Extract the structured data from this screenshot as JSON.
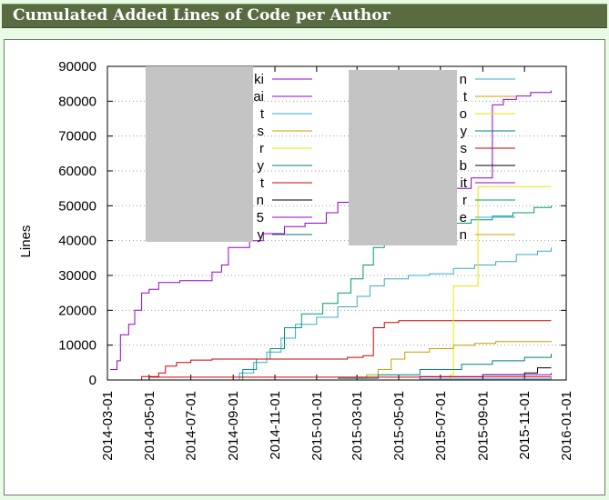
{
  "page": {
    "title": "Cumulated Added Lines of Code per Author"
  },
  "chart_data": {
    "type": "line",
    "title": "",
    "xlabel": "",
    "ylabel": "Lines",
    "ylim": [
      0,
      90000
    ],
    "yticks": [
      "0",
      "10000",
      "20000",
      "30000",
      "40000",
      "50000",
      "60000",
      "70000",
      "80000",
      "90000"
    ],
    "xlim": [
      "2014-03-01",
      "2016-01-01"
    ],
    "xticks": [
      "2014-03-01",
      "2014-05-01",
      "2014-07-01",
      "2014-09-01",
      "2014-11-01",
      "2015-01-01",
      "2015-03-01",
      "2015-05-01",
      "2015-07-01",
      "2015-09-01",
      "2015-11-01",
      "2016-01-01"
    ],
    "grid": "horizontal dotted",
    "legend_placement": "top, two columns (names obscured)",
    "legend_labels_col1": [
      "ki",
      "ai",
      "t",
      "s",
      "r",
      "y",
      "t",
      "n",
      "5",
      "y"
    ],
    "legend_labels_col2": [
      "n",
      "t",
      "o",
      "y",
      "s",
      "b",
      "it",
      "r",
      "e",
      "n"
    ],
    "legend_colors_col1": [
      "#9400d3",
      "#9400d3",
      "#3aa8d1",
      "#c8a000",
      "#e6e600",
      "#007f7f",
      "#cc0000",
      "#000000",
      "#9400d3",
      "#007f7f"
    ],
    "legend_colors_col2": [
      "#3aa8d1",
      "#c8a000",
      "#e6e600",
      "#007f7f",
      "#cc0000",
      "#000000",
      "#9400d3",
      "#009977",
      "#3aa8d1",
      "#c8a000"
    ],
    "series": [
      {
        "color": "#9400d3",
        "points": [
          [
            "2014-03-05",
            3000
          ],
          [
            "2014-03-15",
            5500
          ],
          [
            "2014-03-20",
            13000
          ],
          [
            "2014-04-01",
            16000
          ],
          [
            "2014-04-10",
            20000
          ],
          [
            "2014-04-20",
            25000
          ],
          [
            "2014-05-01",
            26000
          ],
          [
            "2014-05-15",
            28000
          ],
          [
            "2014-06-15",
            28500
          ],
          [
            "2014-07-20",
            28500
          ],
          [
            "2014-08-01",
            31000
          ],
          [
            "2014-08-15",
            33000
          ],
          [
            "2014-08-25",
            38000
          ],
          [
            "2014-09-25",
            40000
          ],
          [
            "2014-10-15",
            42000
          ],
          [
            "2014-11-15",
            44000
          ],
          [
            "2014-12-15",
            45000
          ],
          [
            "2015-01-15",
            48000
          ],
          [
            "2015-02-01",
            51000
          ],
          [
            "2015-02-20",
            51000
          ]
        ]
      },
      {
        "color": "#9400d3",
        "points": [
          [
            "2015-07-25",
            55000
          ],
          [
            "2015-08-15",
            58000
          ],
          [
            "2015-09-15",
            79000
          ],
          [
            "2015-10-01",
            80500
          ],
          [
            "2015-10-20",
            81500
          ],
          [
            "2015-11-10",
            82500
          ],
          [
            "2015-12-10",
            83000
          ]
        ]
      },
      {
        "color": "#3aa8d1",
        "points": [
          [
            "2014-08-20",
            0
          ],
          [
            "2014-09-10",
            2000
          ],
          [
            "2014-10-01",
            5000
          ],
          [
            "2014-10-20",
            8000
          ],
          [
            "2014-11-10",
            12000
          ],
          [
            "2014-12-01",
            16000
          ],
          [
            "2015-01-01",
            18000
          ],
          [
            "2015-02-01",
            21000
          ],
          [
            "2015-03-01",
            24000
          ],
          [
            "2015-03-20",
            27000
          ],
          [
            "2015-04-10",
            29000
          ],
          [
            "2015-05-15",
            30000
          ],
          [
            "2015-06-15",
            30500
          ],
          [
            "2015-07-20",
            32000
          ],
          [
            "2015-08-20",
            33000
          ],
          [
            "2015-09-20",
            34000
          ],
          [
            "2015-10-20",
            36000
          ],
          [
            "2015-11-20",
            37000
          ],
          [
            "2015-12-10",
            38000
          ]
        ]
      },
      {
        "color": "#009977",
        "points": [
          [
            "2014-08-25",
            0
          ],
          [
            "2014-09-15",
            3000
          ],
          [
            "2014-10-05",
            6000
          ],
          [
            "2014-10-25",
            9000
          ],
          [
            "2014-11-15",
            15000
          ],
          [
            "2014-12-10",
            19000
          ],
          [
            "2015-01-10",
            22000
          ],
          [
            "2015-02-01",
            25000
          ],
          [
            "2015-02-20",
            29000
          ],
          [
            "2015-03-10",
            33000
          ],
          [
            "2015-03-25",
            38000
          ],
          [
            "2015-04-10",
            39000
          ],
          [
            "2015-05-15",
            43000
          ],
          [
            "2015-06-15",
            44000
          ],
          [
            "2015-07-15",
            45000
          ],
          [
            "2015-08-15",
            46000
          ],
          [
            "2015-09-15",
            47000
          ],
          [
            "2015-10-15",
            48000
          ],
          [
            "2015-11-15",
            49500
          ],
          [
            "2015-12-10",
            50000
          ]
        ]
      },
      {
        "color": "#cc0000",
        "points": [
          [
            "2014-03-01",
            0
          ],
          [
            "2014-04-20",
            1000
          ],
          [
            "2014-05-15",
            2000
          ],
          [
            "2014-05-25",
            4000
          ],
          [
            "2014-06-10",
            5000
          ],
          [
            "2014-07-01",
            5700
          ],
          [
            "2014-08-01",
            6000
          ],
          [
            "2015-01-01",
            6000
          ],
          [
            "2015-02-15",
            6500
          ],
          [
            "2015-03-10",
            7000
          ],
          [
            "2015-03-25",
            15000
          ],
          [
            "2015-04-10",
            16500
          ],
          [
            "2015-05-01",
            17000
          ],
          [
            "2015-12-10",
            17000
          ]
        ]
      },
      {
        "color": "#e6e600",
        "points": [
          [
            "2014-03-01",
            0
          ],
          [
            "2015-06-01",
            0
          ],
          [
            "2015-07-01",
            200
          ],
          [
            "2015-07-15",
            1500
          ],
          [
            "2015-07-20",
            27000
          ],
          [
            "2015-08-20",
            27000
          ],
          [
            "2015-08-25",
            55500
          ],
          [
            "2015-12-10",
            55500
          ]
        ]
      },
      {
        "color": "#c8a000",
        "points": [
          [
            "2015-02-01",
            500
          ],
          [
            "2015-03-15",
            1500
          ],
          [
            "2015-04-01",
            3000
          ],
          [
            "2015-04-20",
            6000
          ],
          [
            "2015-05-10",
            8000
          ],
          [
            "2015-06-15",
            9000
          ],
          [
            "2015-07-20",
            10000
          ],
          [
            "2015-08-20",
            10500
          ],
          [
            "2015-09-20",
            11000
          ],
          [
            "2015-12-10",
            11200
          ]
        ]
      },
      {
        "color": "#007f7f",
        "points": [
          [
            "2015-02-01",
            500
          ],
          [
            "2015-04-01",
            1500
          ],
          [
            "2015-06-01",
            3000
          ],
          [
            "2015-08-01",
            4500
          ],
          [
            "2015-09-15",
            5500
          ],
          [
            "2015-11-01",
            6500
          ],
          [
            "2015-12-10",
            7500
          ]
        ]
      },
      {
        "color": "#000000",
        "points": [
          [
            "2015-06-01",
            0
          ],
          [
            "2015-09-01",
            1500
          ],
          [
            "2015-11-01",
            2000
          ],
          [
            "2015-11-20",
            3500
          ],
          [
            "2015-12-10",
            3500
          ]
        ]
      },
      {
        "color": "#9400d3",
        "points": [
          [
            "2015-02-01",
            0
          ],
          [
            "2015-06-01",
            1000
          ],
          [
            "2015-09-01",
            1500
          ],
          [
            "2015-12-10",
            2000
          ]
        ]
      },
      {
        "color": "#cc0000",
        "points": [
          [
            "2014-05-01",
            800
          ],
          [
            "2015-06-01",
            900
          ],
          [
            "2015-12-10",
            1000
          ]
        ]
      },
      {
        "color": "#3aa8d1",
        "points": [
          [
            "2014-06-01",
            0
          ],
          [
            "2015-06-01",
            300
          ],
          [
            "2015-12-10",
            900
          ]
        ]
      }
    ]
  }
}
